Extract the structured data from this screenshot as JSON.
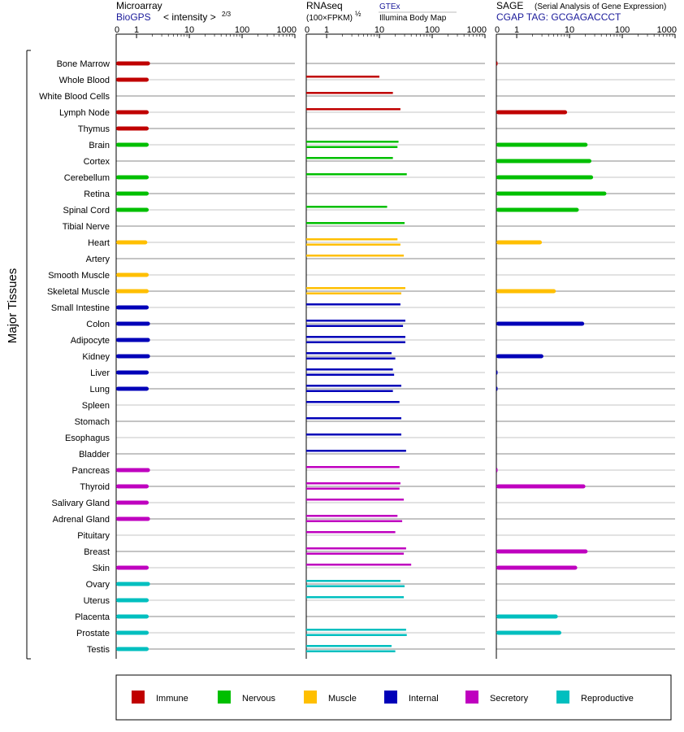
{
  "chart_data": {
    "type": "bar",
    "y_axis_label": "Major Tissues",
    "categories": [
      "Bone Marrow",
      "Whole Blood",
      "White Blood Cells",
      "Lymph Node",
      "Thymus",
      "Brain",
      "Cortex",
      "Cerebellum",
      "Retina",
      "Spinal Cord",
      "Tibial Nerve",
      "Heart",
      "Artery",
      "Smooth Muscle",
      "Skeletal Muscle",
      "Small Intestine",
      "Colon",
      "Adipocyte",
      "Kidney",
      "Liver",
      "Lung",
      "Spleen",
      "Stomach",
      "Esophagus",
      "Bladder",
      "Pancreas",
      "Thyroid",
      "Salivary Gland",
      "Adrenal Gland",
      "Pituitary",
      "Breast",
      "Skin",
      "Ovary",
      "Uterus",
      "Placenta",
      "Prostate",
      "Testis"
    ],
    "category_groups": [
      "Immune",
      "Immune",
      "Immune",
      "Immune",
      "Immune",
      "Nervous",
      "Nervous",
      "Nervous",
      "Nervous",
      "Nervous",
      "Nervous",
      "Muscle",
      "Muscle",
      "Muscle",
      "Muscle",
      "Internal",
      "Internal",
      "Internal",
      "Internal",
      "Internal",
      "Internal",
      "Internal",
      "Internal",
      "Internal",
      "Internal",
      "Secretory",
      "Secretory",
      "Secretory",
      "Secretory",
      "Secretory",
      "Secretory",
      "Secretory",
      "Reproductive",
      "Reproductive",
      "Reproductive",
      "Reproductive",
      "Reproductive"
    ],
    "axis_ticks": [
      "0",
      "1",
      "10",
      "100",
      "1000"
    ],
    "axis_range": [
      0,
      1000
    ],
    "panels": [
      {
        "id": "microarray",
        "title": "Microarray",
        "source_link": "BioGPS",
        "scale_label": "< intensity >",
        "scale_exponent": "2/3",
        "bar_style": "single",
        "values": [
          1.8,
          1.7,
          null,
          1.7,
          1.7,
          1.7,
          null,
          1.7,
          1.7,
          1.7,
          null,
          1.6,
          null,
          1.7,
          1.7,
          1.7,
          1.8,
          1.8,
          1.8,
          1.7,
          1.7,
          null,
          null,
          null,
          null,
          1.8,
          1.7,
          1.7,
          1.8,
          null,
          null,
          1.7,
          1.8,
          1.7,
          1.7,
          1.7,
          1.7
        ]
      },
      {
        "id": "rnaseq",
        "title": "RNAseq",
        "scale_label": "(100×FPKM)",
        "scale_exponent": "½",
        "source_link_1": "GTEx",
        "source_text_2": "Illumina Body Map",
        "bar_style": "paired",
        "values": [
          [
            null,
            null
          ],
          [
            10,
            null
          ],
          [
            18,
            null
          ],
          [
            25,
            null
          ],
          [
            null,
            null
          ],
          [
            23,
            22
          ],
          [
            18,
            null
          ],
          [
            33,
            null
          ],
          [
            null,
            null
          ],
          [
            14,
            null
          ],
          [
            30,
            null
          ],
          [
            22,
            25
          ],
          [
            29,
            null
          ],
          [
            null,
            null
          ],
          [
            31,
            26
          ],
          [
            25,
            null
          ],
          [
            31,
            28
          ],
          [
            31,
            31
          ],
          [
            17,
            20
          ],
          [
            18,
            19
          ],
          [
            26,
            18
          ],
          [
            24,
            null
          ],
          [
            26,
            null
          ],
          [
            26,
            null
          ],
          [
            32,
            null
          ],
          [
            24,
            null
          ],
          [
            25,
            24
          ],
          [
            29,
            null
          ],
          [
            22,
            27
          ],
          [
            20,
            null
          ],
          [
            32,
            29
          ],
          [
            40,
            null
          ],
          [
            25,
            30
          ],
          [
            29,
            null
          ],
          [
            null,
            null
          ],
          [
            32,
            33
          ],
          [
            17,
            20
          ]
        ]
      },
      {
        "id": "sage",
        "title": "SAGE",
        "subtitle": "(Serial Analysis of Gene Expression)",
        "tag_label": "CGAP TAG: GCGAGACCCT",
        "bar_style": "single",
        "values": [
          0.05,
          null,
          null,
          9,
          null,
          22,
          26,
          28,
          50,
          15,
          null,
          3,
          null,
          null,
          5.5,
          null,
          19,
          null,
          3.2,
          0.04,
          0.03,
          null,
          null,
          null,
          null,
          0.03,
          20,
          null,
          null,
          null,
          22,
          14,
          null,
          null,
          6,
          7,
          null
        ]
      }
    ],
    "legend": [
      {
        "name": "Immune",
        "color": "#c00000"
      },
      {
        "name": "Nervous",
        "color": "#00bf00"
      },
      {
        "name": "Muscle",
        "color": "#ffbf00"
      },
      {
        "name": "Internal",
        "color": "#0000b8"
      },
      {
        "name": "Secretory",
        "color": "#bf00bf"
      },
      {
        "name": "Reproductive",
        "color": "#00bfbf"
      }
    ]
  }
}
